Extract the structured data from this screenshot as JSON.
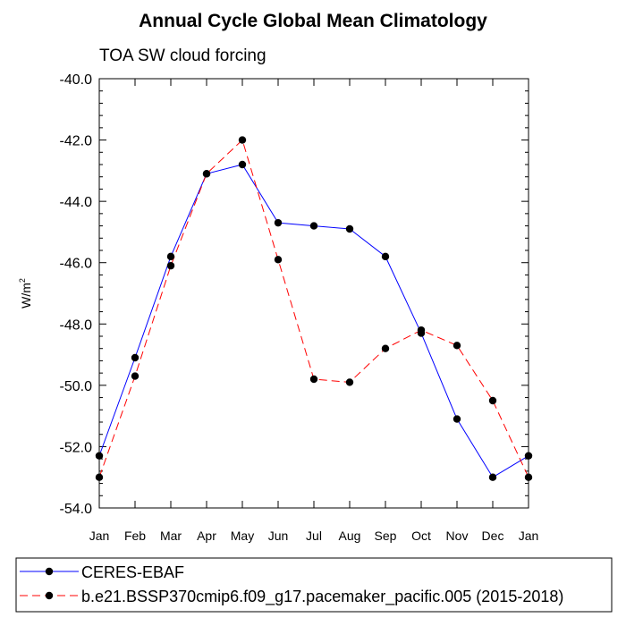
{
  "chart_data": {
    "type": "line",
    "title": "Annual Cycle Global Mean Climatology",
    "subtitle": "TOA SW cloud forcing",
    "ylabel": "W/m",
    "ylabel_superscript": "2",
    "ylim": [
      -54.0,
      -40.0
    ],
    "yticks": [
      "-40.0",
      "-42.0",
      "-44.0",
      "-46.0",
      "-48.0",
      "-50.0",
      "-52.0",
      "-54.0"
    ],
    "categories": [
      "Jan",
      "Feb",
      "Mar",
      "Apr",
      "May",
      "Jun",
      "Jul",
      "Aug",
      "Sep",
      "Oct",
      "Nov",
      "Dec",
      "Jan"
    ],
    "grid": false,
    "legend_position": "bottom",
    "series": [
      {
        "name": "CERES-EBAF",
        "color": "#0000ff",
        "dash": "solid",
        "values": [
          -52.3,
          -49.1,
          -45.8,
          -43.1,
          -42.8,
          -44.7,
          -44.8,
          -44.9,
          -45.8,
          -48.3,
          -51.1,
          -53.0,
          -52.3
        ]
      },
      {
        "name": "b.e21.BSSP370cmip6.f09_g17.pacemaker_pacific.005 (2015-2018)",
        "color": "#ff0000",
        "dash": "dashed",
        "values": [
          -53.0,
          -49.7,
          -46.1,
          -43.1,
          -42.0,
          -45.9,
          -49.8,
          -49.9,
          -48.8,
          -48.2,
          -48.7,
          -50.5,
          -53.0
        ]
      }
    ]
  }
}
